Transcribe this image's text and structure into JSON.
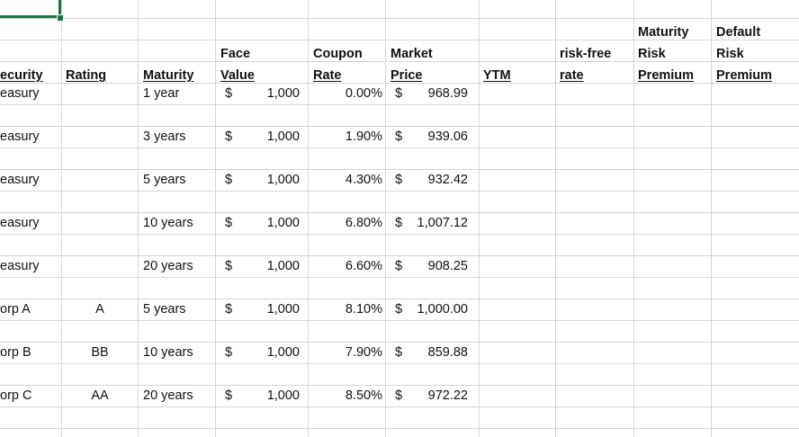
{
  "headers": {
    "face_line1": "Face",
    "face_line2": "Value",
    "coupon_line1": "Coupon",
    "coupon_line2": "Rate",
    "market_line1": "Market",
    "market_line2": "Price",
    "security": "ecurity",
    "rating": "Rating",
    "maturity": "Maturity",
    "ytm": "YTM",
    "riskfree_line1": "risk-free",
    "riskfree_line2": "rate",
    "mrp_line1": "Maturity",
    "mrp_line2": "Risk",
    "mrp_line3": "Premium",
    "drp_line1": "Default",
    "drp_line2": "Risk",
    "drp_line3": "Premium"
  },
  "bonds": [
    {
      "security": "easury",
      "rating": "",
      "maturity": "1 year",
      "face_cur": "$",
      "face": "1,000",
      "coupon": "0.00%",
      "price_cur": "$",
      "price": "968.99"
    },
    {
      "security": "easury",
      "rating": "",
      "maturity": "3 years",
      "face_cur": "$",
      "face": "1,000",
      "coupon": "1.90%",
      "price_cur": "$",
      "price": "939.06"
    },
    {
      "security": "easury",
      "rating": "",
      "maturity": "5 years",
      "face_cur": "$",
      "face": "1,000",
      "coupon": "4.30%",
      "price_cur": "$",
      "price": "932.42"
    },
    {
      "security": "easury",
      "rating": "",
      "maturity": "10 years",
      "face_cur": "$",
      "face": "1,000",
      "coupon": "6.80%",
      "price_cur": "$",
      "price": "1,007.12"
    },
    {
      "security": "easury",
      "rating": "",
      "maturity": "20 years",
      "face_cur": "$",
      "face": "1,000",
      "coupon": "6.60%",
      "price_cur": "$",
      "price": "908.25"
    },
    {
      "security": "orp A",
      "rating": "A",
      "maturity": "5 years",
      "face_cur": "$",
      "face": "1,000",
      "coupon": "8.10%",
      "price_cur": "$",
      "price": "1,000.00"
    },
    {
      "security": "orp B",
      "rating": "BB",
      "maturity": "10 years",
      "face_cur": "$",
      "face": "1,000",
      "coupon": "7.90%",
      "price_cur": "$",
      "price": "859.88"
    },
    {
      "security": "orp C",
      "rating": "AA",
      "maturity": "20 years",
      "face_cur": "$",
      "face": "1,000",
      "coupon": "8.50%",
      "price_cur": "$",
      "price": "972.22"
    }
  ],
  "colors": {
    "gridline": "#d4d4d4",
    "selection": "#217346"
  }
}
